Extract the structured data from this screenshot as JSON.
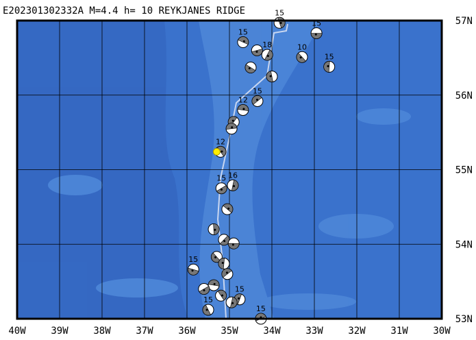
{
  "title": "E202301302332A  M=4.4  h= 10  REYKJANES RIDGE",
  "map": {
    "lonlim": [
      -40,
      -30
    ],
    "latlim": [
      53,
      57
    ],
    "lon_ticks": [
      {
        "value": -40,
        "label": "40W"
      },
      {
        "value": -39,
        "label": "39W"
      },
      {
        "value": -38,
        "label": "38W"
      },
      {
        "value": -37,
        "label": "37W"
      },
      {
        "value": -36,
        "label": "36W"
      },
      {
        "value": -35,
        "label": "35W"
      },
      {
        "value": -34,
        "label": "34W"
      },
      {
        "value": -33,
        "label": "33W"
      },
      {
        "value": -32,
        "label": "32W"
      },
      {
        "value": -31,
        "label": "31W"
      },
      {
        "value": -30,
        "label": "30W"
      }
    ],
    "lat_ticks": [
      {
        "value": 53,
        "label": "53N"
      },
      {
        "value": 54,
        "label": "54N"
      },
      {
        "value": 55,
        "label": "55N"
      },
      {
        "value": 56,
        "label": "56N"
      },
      {
        "value": 57,
        "label": "57N"
      }
    ],
    "epicenter": {
      "lon": -35.3,
      "lat": 55.24
    },
    "events": [
      {
        "lon": -32.95,
        "lat": 56.83,
        "depth": "15"
      },
      {
        "lon": -33.29,
        "lat": 56.51,
        "depth": "10"
      },
      {
        "lon": -32.65,
        "lat": 56.38,
        "depth": "15"
      },
      {
        "lon": -34.34,
        "lat": 55.92,
        "depth": "15"
      },
      {
        "lon": -34.68,
        "lat": 55.8,
        "depth": "12"
      },
      {
        "lon": -35.21,
        "lat": 55.24,
        "depth": "12"
      },
      {
        "lon": -34.92,
        "lat": 54.79,
        "depth": "16"
      },
      {
        "lon": -35.19,
        "lat": 54.75,
        "depth": "15"
      },
      {
        "lon": -35.85,
        "lat": 53.66,
        "depth": "15"
      },
      {
        "lon": -35.5,
        "lat": 53.12,
        "depth": "15"
      },
      {
        "lon": -34.76,
        "lat": 53.26,
        "depth": "15"
      },
      {
        "lon": -34.26,
        "lat": 53.0,
        "depth": "15"
      },
      {
        "lon": -34.68,
        "lat": 56.71,
        "depth": "15"
      },
      {
        "lon": -33.82,
        "lat": 56.97,
        "depth": "15"
      },
      {
        "lon": -34.11,
        "lat": 56.54,
        "depth": "18"
      },
      {
        "lon": -34.35,
        "lat": 56.6
      },
      {
        "lon": -34.5,
        "lat": 56.37
      },
      {
        "lon": -34.0,
        "lat": 56.25
      },
      {
        "lon": -34.9,
        "lat": 55.64
      },
      {
        "lon": -34.95,
        "lat": 55.55
      },
      {
        "lon": -35.05,
        "lat": 54.47
      },
      {
        "lon": -35.37,
        "lat": 54.2
      },
      {
        "lon": -35.13,
        "lat": 54.06
      },
      {
        "lon": -34.9,
        "lat": 54.01
      },
      {
        "lon": -35.3,
        "lat": 53.83
      },
      {
        "lon": -35.13,
        "lat": 53.74
      },
      {
        "lon": -35.05,
        "lat": 53.6
      },
      {
        "lon": -35.37,
        "lat": 53.45
      },
      {
        "lon": -35.2,
        "lat": 53.31
      },
      {
        "lon": -34.95,
        "lat": 53.22
      },
      {
        "lon": -35.6,
        "lat": 53.4
      }
    ]
  }
}
